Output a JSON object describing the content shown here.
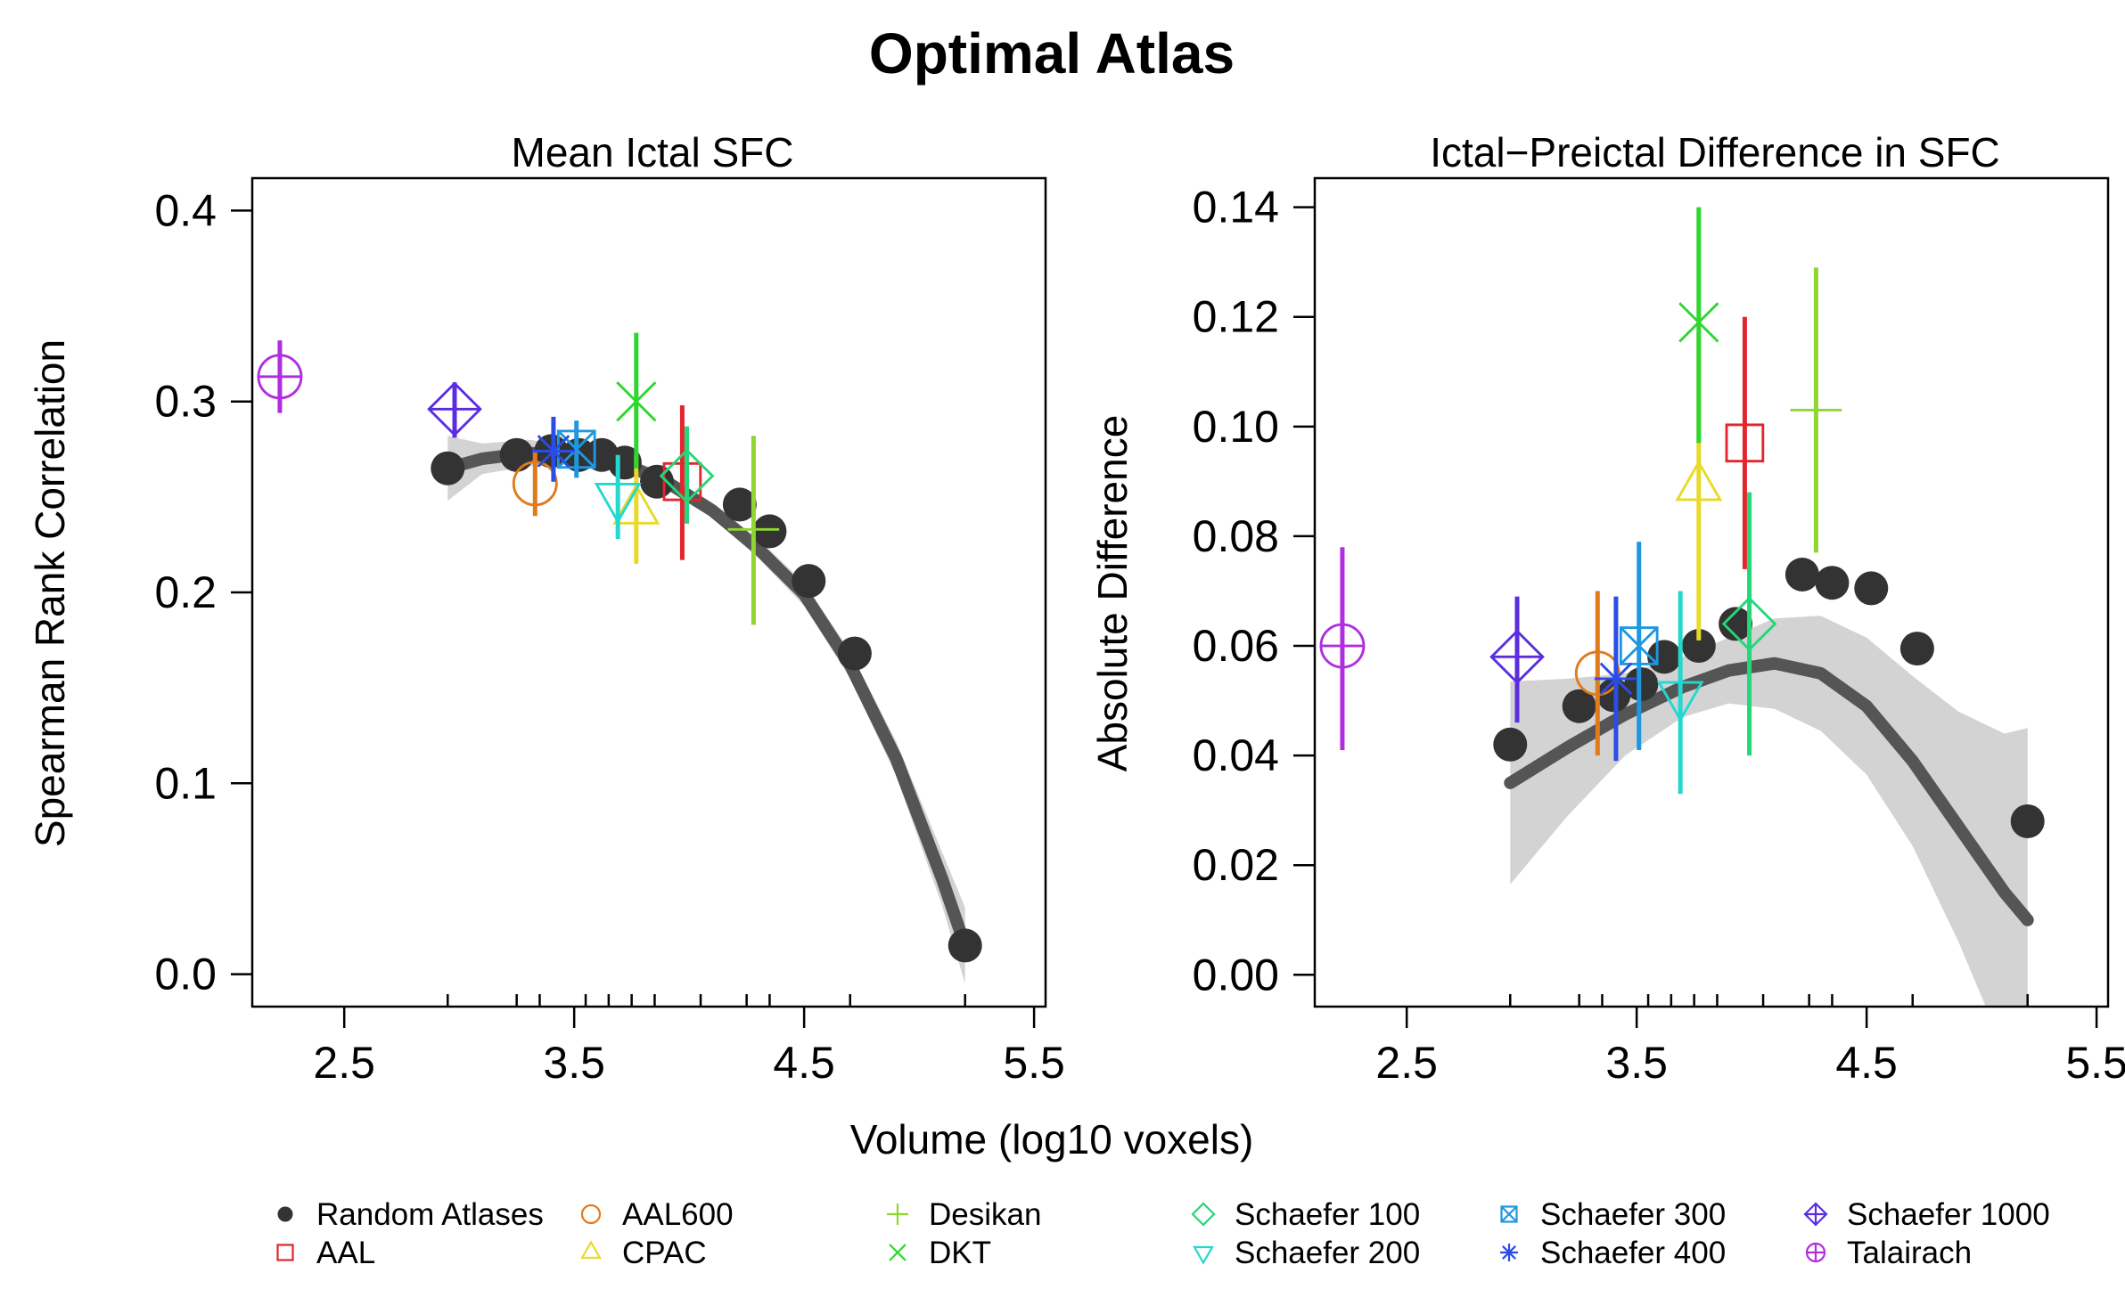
{
  "figure": {
    "title": "Optimal Atlas",
    "xlabel": "Volume (log10 voxels)"
  },
  "legend": {
    "entries": [
      {
        "label": "Random Atlases",
        "color": "#333333",
        "marker": "dot"
      },
      {
        "label": "AAL",
        "color": "#e2262c",
        "marker": "square"
      },
      {
        "label": "AAL600",
        "color": "#e07b1b",
        "marker": "circle"
      },
      {
        "label": "CPAC",
        "color": "#e8d92a",
        "marker": "triangle-up"
      },
      {
        "label": "Desikan",
        "color": "#8fd630",
        "marker": "plus"
      },
      {
        "label": "DKT",
        "color": "#2fd62f",
        "marker": "cross"
      },
      {
        "label": "Schaefer 100",
        "color": "#25d67a",
        "marker": "diamond"
      },
      {
        "label": "Schaefer 200",
        "color": "#22d8d0",
        "marker": "triangle-down"
      },
      {
        "label": "Schaefer 300",
        "color": "#1e97e0",
        "marker": "boxed-x"
      },
      {
        "label": "Schaefer 400",
        "color": "#2a4de8",
        "marker": "asterisk"
      },
      {
        "label": "Schaefer 1000",
        "color": "#5a2ee0",
        "marker": "diamond-plus"
      },
      {
        "label": "Talairach",
        "color": "#b02ee0",
        "marker": "circle-plus"
      }
    ]
  },
  "chart_data": [
    {
      "type": "scatter",
      "title": "Mean Ictal SFC",
      "xlabel": "Volume (log10 voxels)",
      "ylabel": "Spearman Rank Correlation",
      "xlim": [
        2.1,
        5.55
      ],
      "ylim": [
        -0.017,
        0.417
      ],
      "xticks": [
        "2.5",
        "3.5",
        "4.5",
        "5.5"
      ],
      "yticks": [
        "0.0",
        "0.1",
        "0.2",
        "0.3",
        "0.4"
      ],
      "grid": false,
      "random_atlases": {
        "x": [
          2.95,
          3.25,
          3.4,
          3.52,
          3.62,
          3.72,
          3.86,
          4.22,
          4.35,
          4.52,
          4.72,
          5.2
        ],
        "y": [
          0.265,
          0.272,
          0.274,
          0.272,
          0.272,
          0.268,
          0.258,
          0.246,
          0.232,
          0.206,
          0.168,
          0.015
        ]
      },
      "fit": {
        "x": [
          2.95,
          3.1,
          3.3,
          3.5,
          3.7,
          3.9,
          4.1,
          4.3,
          4.5,
          4.7,
          4.9,
          5.1,
          5.2
        ],
        "y": [
          0.265,
          0.27,
          0.273,
          0.272,
          0.268,
          0.258,
          0.243,
          0.223,
          0.199,
          0.162,
          0.113,
          0.05,
          0.015
        ],
        "lower": [
          0.248,
          0.262,
          0.266,
          0.267,
          0.264,
          0.254,
          0.239,
          0.218,
          0.193,
          0.155,
          0.104,
          0.036,
          -0.005
        ],
        "upper": [
          0.282,
          0.278,
          0.28,
          0.277,
          0.272,
          0.262,
          0.247,
          0.228,
          0.205,
          0.169,
          0.122,
          0.064,
          0.035
        ]
      },
      "atlases": [
        {
          "name": "AAL",
          "x": 3.97,
          "y": 0.258,
          "lo": 0.217,
          "hi": 0.298
        },
        {
          "name": "AAL600",
          "x": 3.33,
          "y": 0.257,
          "lo": 0.24,
          "hi": 0.274
        },
        {
          "name": "CPAC",
          "x": 3.77,
          "y": 0.243,
          "lo": 0.215,
          "hi": 0.272
        },
        {
          "name": "Desikan",
          "x": 4.28,
          "y": 0.233,
          "lo": 0.183,
          "hi": 0.282
        },
        {
          "name": "DKT",
          "x": 3.77,
          "y": 0.3,
          "lo": 0.265,
          "hi": 0.336
        },
        {
          "name": "Schaefer 100",
          "x": 3.99,
          "y": 0.261,
          "lo": 0.236,
          "hi": 0.287
        },
        {
          "name": "Schaefer 200",
          "x": 3.69,
          "y": 0.25,
          "lo": 0.228,
          "hi": 0.272
        },
        {
          "name": "Schaefer 300",
          "x": 3.51,
          "y": 0.275,
          "lo": 0.26,
          "hi": 0.29
        },
        {
          "name": "Schaefer 400",
          "x": 3.41,
          "y": 0.274,
          "lo": 0.258,
          "hi": 0.292
        },
        {
          "name": "Schaefer 1000",
          "x": 2.98,
          "y": 0.296,
          "lo": 0.281,
          "hi": 0.31
        },
        {
          "name": "Talairach",
          "x": 2.22,
          "y": 0.313,
          "lo": 0.294,
          "hi": 0.332
        }
      ]
    },
    {
      "type": "scatter",
      "title": "Ictal−Preictal Difference in SFC",
      "xlabel": "Volume (log10 voxels)",
      "ylabel": "Absolute Difference",
      "xlim": [
        2.1,
        5.55
      ],
      "ylim": [
        -0.0058,
        0.1453
      ],
      "xticks": [
        "2.5",
        "3.5",
        "4.5",
        "5.5"
      ],
      "yticks": [
        "0.00",
        "0.02",
        "0.04",
        "0.06",
        "0.08",
        "0.10",
        "0.12",
        "0.14"
      ],
      "grid": false,
      "random_atlases": {
        "x": [
          2.95,
          3.25,
          3.4,
          3.52,
          3.62,
          3.77,
          3.93,
          4.22,
          4.35,
          4.52,
          4.72,
          5.2
        ],
        "y": [
          0.042,
          0.049,
          0.051,
          0.053,
          0.058,
          0.06,
          0.064,
          0.073,
          0.0715,
          0.0705,
          0.0595,
          0.028
        ]
      },
      "fit": {
        "x": [
          2.95,
          3.2,
          3.45,
          3.7,
          3.9,
          4.1,
          4.3,
          4.5,
          4.7,
          4.9,
          5.1,
          5.2
        ],
        "y": [
          0.035,
          0.0415,
          0.0475,
          0.0525,
          0.0555,
          0.0568,
          0.055,
          0.049,
          0.039,
          0.027,
          0.015,
          0.01
        ],
        "lower": [
          0.0165,
          0.029,
          0.04,
          0.047,
          0.0495,
          0.0485,
          0.0445,
          0.0365,
          0.0235,
          0.006,
          -0.014,
          -0.025
        ],
        "upper": [
          0.0535,
          0.054,
          0.055,
          0.058,
          0.0615,
          0.065,
          0.0655,
          0.0615,
          0.0545,
          0.048,
          0.044,
          0.045
        ]
      },
      "atlases": [
        {
          "name": "AAL",
          "x": 3.97,
          "y": 0.097,
          "lo": 0.074,
          "hi": 0.12
        },
        {
          "name": "AAL600",
          "x": 3.33,
          "y": 0.055,
          "lo": 0.04,
          "hi": 0.07
        },
        {
          "name": "CPAC",
          "x": 3.77,
          "y": 0.089,
          "lo": 0.061,
          "hi": 0.117
        },
        {
          "name": "Desikan",
          "x": 4.28,
          "y": 0.103,
          "lo": 0.077,
          "hi": 0.129
        },
        {
          "name": "DKT",
          "x": 3.77,
          "y": 0.119,
          "lo": 0.097,
          "hi": 0.14
        },
        {
          "name": "Schaefer 100",
          "x": 3.99,
          "y": 0.064,
          "lo": 0.04,
          "hi": 0.088
        },
        {
          "name": "Schaefer 200",
          "x": 3.69,
          "y": 0.051,
          "lo": 0.033,
          "hi": 0.07
        },
        {
          "name": "Schaefer 300",
          "x": 3.51,
          "y": 0.06,
          "lo": 0.041,
          "hi": 0.079
        },
        {
          "name": "Schaefer 400",
          "x": 3.41,
          "y": 0.054,
          "lo": 0.039,
          "hi": 0.069
        },
        {
          "name": "Schaefer 1000",
          "x": 2.98,
          "y": 0.058,
          "lo": 0.046,
          "hi": 0.069
        },
        {
          "name": "Talairach",
          "x": 2.22,
          "y": 0.06,
          "lo": 0.041,
          "hi": 0.078
        }
      ]
    }
  ]
}
